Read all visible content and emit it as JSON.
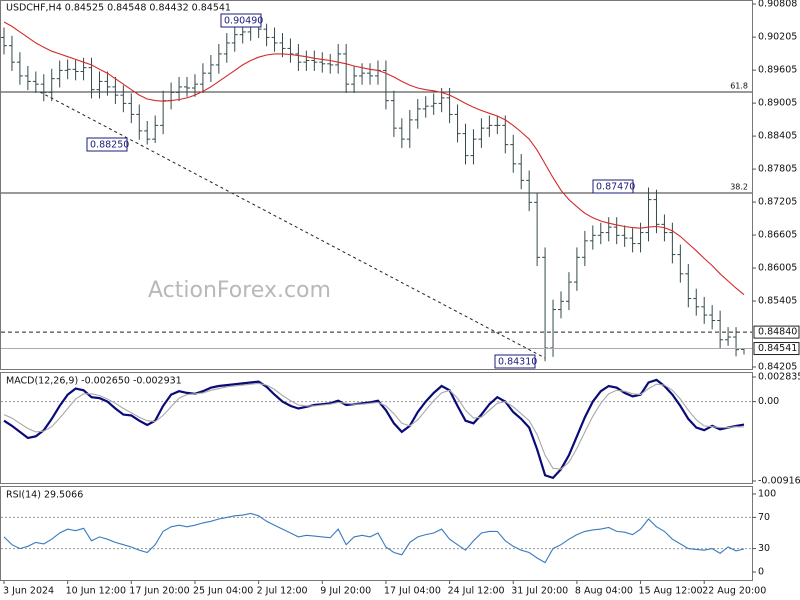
{
  "chart_data": [
    {
      "type": "ohlc",
      "title": "USDCHF,H4  0.84525 0.84548 0.84432 0.84541",
      "watermark": "ActionForex.com",
      "color": "#34494a",
      "open": [
        0.902,
        0.9005,
        0.8975,
        0.895,
        0.894,
        0.8935,
        0.892,
        0.8945,
        0.896,
        0.8962,
        0.8958,
        0.8965,
        0.8925,
        0.894,
        0.893,
        0.8915,
        0.89,
        0.888,
        0.885,
        0.8835,
        0.886,
        0.8905,
        0.892,
        0.893,
        0.8928,
        0.8935,
        0.8955,
        0.897,
        0.899,
        0.901,
        0.9025,
        0.903,
        0.904,
        0.9035,
        0.902,
        0.901,
        0.9,
        0.899,
        0.8975,
        0.8978,
        0.8975,
        0.8972,
        0.897,
        0.899,
        0.8935,
        0.895,
        0.8955,
        0.895,
        0.896,
        0.8905,
        0.8855,
        0.8835,
        0.887,
        0.889,
        0.8895,
        0.89,
        0.891,
        0.888,
        0.8845,
        0.8805,
        0.8835,
        0.8855,
        0.886,
        0.886,
        0.8825,
        0.879,
        0.876,
        0.872,
        0.862,
        0.8455,
        0.8525,
        0.854,
        0.8575,
        0.862,
        0.865,
        0.866,
        0.8665,
        0.8675,
        0.866,
        0.8655,
        0.8645,
        0.8665,
        0.8725,
        0.868,
        0.8665,
        0.8625,
        0.859,
        0.8545,
        0.853,
        0.8515,
        0.8505,
        0.847,
        0.8475,
        0.84525
      ],
      "high": [
        0.9038,
        0.9023,
        0.8993,
        0.8968,
        0.8958,
        0.8953,
        0.8963,
        0.8978,
        0.898,
        0.898,
        0.8983,
        0.8983,
        0.8958,
        0.8958,
        0.8948,
        0.8933,
        0.8918,
        0.8898,
        0.8868,
        0.8878,
        0.8923,
        0.8938,
        0.8948,
        0.8948,
        0.8953,
        0.8973,
        0.8988,
        0.9008,
        0.9028,
        0.9043,
        0.9046,
        0.9049,
        0.9047,
        0.9045,
        0.9038,
        0.9028,
        0.9018,
        0.9008,
        0.8996,
        0.8996,
        0.8993,
        0.899,
        0.9008,
        0.9008,
        0.8968,
        0.8973,
        0.8973,
        0.8978,
        0.8978,
        0.8923,
        0.8873,
        0.8888,
        0.8908,
        0.8913,
        0.8918,
        0.8928,
        0.8928,
        0.8898,
        0.8863,
        0.8853,
        0.8873,
        0.8878,
        0.8878,
        0.8878,
        0.8843,
        0.8808,
        0.8778,
        0.8738,
        0.8638,
        0.8543,
        0.8558,
        0.8593,
        0.8638,
        0.8668,
        0.8678,
        0.8683,
        0.8693,
        0.8693,
        0.8678,
        0.8673,
        0.8683,
        0.8747,
        0.8743,
        0.8698,
        0.8683,
        0.8643,
        0.8608,
        0.8563,
        0.8548,
        0.8533,
        0.8523,
        0.8493,
        0.8493,
        0.84548
      ],
      "low": [
        0.8989,
        0.8959,
        0.8934,
        0.8924,
        0.8919,
        0.8904,
        0.8904,
        0.8929,
        0.8944,
        0.8942,
        0.8942,
        0.8909,
        0.8909,
        0.8914,
        0.8899,
        0.8884,
        0.8864,
        0.8834,
        0.8825,
        0.8828,
        0.8844,
        0.8889,
        0.8904,
        0.8912,
        0.8912,
        0.8919,
        0.8939,
        0.8954,
        0.8974,
        0.8994,
        0.9009,
        0.9014,
        0.9019,
        0.9004,
        0.8994,
        0.8984,
        0.8974,
        0.8959,
        0.8959,
        0.8959,
        0.8956,
        0.8954,
        0.8954,
        0.8919,
        0.8919,
        0.8934,
        0.8934,
        0.8934,
        0.8889,
        0.8839,
        0.8819,
        0.8819,
        0.8854,
        0.8874,
        0.8879,
        0.8884,
        0.8864,
        0.8829,
        0.8789,
        0.8789,
        0.8819,
        0.8839,
        0.8844,
        0.8809,
        0.8774,
        0.8744,
        0.8704,
        0.8604,
        0.8431,
        0.8439,
        0.8509,
        0.8524,
        0.8559,
        0.8604,
        0.8634,
        0.8644,
        0.8649,
        0.8644,
        0.8639,
        0.8629,
        0.8629,
        0.8649,
        0.8664,
        0.8649,
        0.8609,
        0.8574,
        0.8529,
        0.8514,
        0.8499,
        0.8489,
        0.8454,
        0.8459,
        0.844,
        0.84432
      ],
      "close": [
        0.9005,
        0.8975,
        0.895,
        0.894,
        0.8935,
        0.892,
        0.8945,
        0.896,
        0.8962,
        0.8958,
        0.8965,
        0.8925,
        0.894,
        0.893,
        0.8915,
        0.89,
        0.888,
        0.885,
        0.8835,
        0.886,
        0.8905,
        0.892,
        0.893,
        0.8928,
        0.8935,
        0.8955,
        0.897,
        0.899,
        0.901,
        0.9025,
        0.903,
        0.904,
        0.9035,
        0.902,
        0.901,
        0.9,
        0.899,
        0.8975,
        0.8978,
        0.8975,
        0.8972,
        0.897,
        0.899,
        0.8935,
        0.895,
        0.8955,
        0.895,
        0.896,
        0.8905,
        0.8855,
        0.8835,
        0.887,
        0.889,
        0.8895,
        0.89,
        0.891,
        0.888,
        0.8845,
        0.8805,
        0.8835,
        0.8855,
        0.886,
        0.886,
        0.8825,
        0.879,
        0.876,
        0.872,
        0.862,
        0.8455,
        0.8525,
        0.854,
        0.8575,
        0.862,
        0.865,
        0.866,
        0.8665,
        0.8675,
        0.866,
        0.8655,
        0.8645,
        0.8665,
        0.8725,
        0.868,
        0.8665,
        0.8625,
        0.859,
        0.8545,
        0.853,
        0.8515,
        0.8505,
        0.847,
        0.8475,
        0.8452,
        0.84541
      ],
      "series": [
        {
          "color": "#d42a2a",
          "values": [
            0.9048,
            0.904,
            0.903,
            0.902,
            0.901,
            0.9002,
            0.8995,
            0.899,
            0.8985,
            0.898,
            0.8975,
            0.897,
            0.8962,
            0.8955,
            0.8945,
            0.8935,
            0.8925,
            0.8915,
            0.8908,
            0.8905,
            0.8904,
            0.8905,
            0.8907,
            0.891,
            0.8915,
            0.8922,
            0.893,
            0.894,
            0.895,
            0.896,
            0.897,
            0.8978,
            0.8984,
            0.8988,
            0.899,
            0.899,
            0.8989,
            0.8987,
            0.8985,
            0.8982,
            0.898,
            0.8978,
            0.8975,
            0.8972,
            0.8968,
            0.8965,
            0.8962,
            0.896,
            0.8955,
            0.8948,
            0.894,
            0.8933,
            0.8928,
            0.8925,
            0.8923,
            0.892,
            0.8915,
            0.8908,
            0.89,
            0.8893,
            0.8887,
            0.8882,
            0.8877,
            0.887,
            0.886,
            0.8848,
            0.8835,
            0.8815,
            0.879,
            0.8765,
            0.8742,
            0.8725,
            0.8712,
            0.87,
            0.8692,
            0.8686,
            0.8682,
            0.8679,
            0.8676,
            0.8674,
            0.8673,
            0.8675,
            0.8676,
            0.8674,
            0.8668,
            0.8658,
            0.8645,
            0.8632,
            0.8618,
            0.8605,
            0.859,
            0.8577,
            0.8564,
            0.8552
          ]
        }
      ],
      "ylim": [
        0.84205,
        0.90808
      ],
      "yticks": [
        0.90808,
        0.90205,
        0.89605,
        0.89005,
        0.88405,
        0.87805,
        0.87205,
        0.86605,
        0.86005,
        0.85405,
        0.84205
      ],
      "levels": [
        {
          "label": "61.8",
          "value": 0.89207
        },
        {
          "label": "38.2",
          "value": 0.8737
        }
      ],
      "hline": {
        "value": 0.8484,
        "label": "0.84840"
      },
      "annotations": [
        "0.90490",
        "0.88250",
        "0.87470",
        "0.84310"
      ]
    },
    {
      "type": "line",
      "title": "MACD(12,26,9) -0.002650 -0.002931",
      "grid": true,
      "series": [
        {
          "color": "#0a0a78",
          "values": [
            -0.0022,
            -0.0028,
            -0.0035,
            -0.0042,
            -0.004,
            -0.0033,
            -0.002,
            -0.0005,
            0.0008,
            0.0015,
            0.0013,
            0.0005,
            0.0004,
            0.0,
            -0.0008,
            -0.0015,
            -0.0016,
            -0.0022,
            -0.0027,
            -0.0022,
            -0.0005,
            0.0008,
            0.0012,
            0.001,
            0.0009,
            0.0012,
            0.0016,
            0.0018,
            0.0019,
            0.002,
            0.0021,
            0.0022,
            0.0023,
            0.0017,
            0.0008,
            0.0,
            -0.0005,
            -0.0008,
            -0.0006,
            -0.0004,
            -0.0003,
            -0.0002,
            0.0001,
            -0.0004,
            -0.0003,
            -0.0002,
            -0.0001,
            0.0001,
            -0.001,
            -0.0025,
            -0.0035,
            -0.0028,
            -0.0012,
            0.0,
            0.001,
            0.0018,
            0.0013,
            -0.0005,
            -0.0022,
            -0.0025,
            -0.0015,
            -0.0003,
            0.0005,
            0.0,
            -0.0012,
            -0.002,
            -0.003,
            -0.0055,
            -0.0085,
            -0.0088,
            -0.0078,
            -0.0062,
            -0.004,
            -0.0018,
            0.0,
            0.0012,
            0.0018,
            0.0016,
            0.001,
            0.0006,
            0.0008,
            0.0022,
            0.0025,
            0.0018,
            0.0008,
            -0.0005,
            -0.002,
            -0.003,
            -0.0033,
            -0.0028,
            -0.0032,
            -0.003,
            -0.0028,
            -0.00265
          ]
        },
        {
          "color": "#a8a8a8",
          "values": [
            -0.0015,
            -0.0019,
            -0.0025,
            -0.0031,
            -0.0035,
            -0.0034,
            -0.0029,
            -0.0019,
            -0.0008,
            0.0003,
            0.0009,
            0.0009,
            0.0007,
            0.0003,
            -0.0002,
            -0.0008,
            -0.0013,
            -0.0018,
            -0.0022,
            -0.0023,
            -0.0016,
            -0.0006,
            0.0004,
            0.0008,
            0.0009,
            0.001,
            0.0013,
            0.0015,
            0.0017,
            0.0018,
            0.0019,
            0.002,
            0.0021,
            0.0019,
            0.0014,
            0.0007,
            0.0001,
            -0.0004,
            -0.0005,
            -0.0005,
            -0.0004,
            -0.0003,
            -0.0001,
            -0.0002,
            -0.0003,
            -0.0003,
            -0.0002,
            -0.0001,
            -0.0005,
            -0.0014,
            -0.0025,
            -0.0028,
            -0.0021,
            -0.001,
            0.0001,
            0.001,
            0.0013,
            0.0004,
            -0.001,
            -0.0019,
            -0.0018,
            -0.001,
            -0.0002,
            0.0,
            -0.0006,
            -0.0014,
            -0.0022,
            -0.0038,
            -0.0062,
            -0.0077,
            -0.0078,
            -0.007,
            -0.0054,
            -0.0035,
            -0.0017,
            -0.0002,
            0.0009,
            0.0013,
            0.0012,
            0.0009,
            0.0008,
            0.0015,
            0.002,
            0.0019,
            0.0013,
            0.0003,
            -0.001,
            -0.0021,
            -0.0028,
            -0.0029,
            -0.003,
            -0.003,
            -0.0029,
            -0.002931
          ]
        }
      ],
      "ylim": [
        -0.009161,
        0.002835
      ],
      "yticks": [
        0.002835,
        {
          "value": 0,
          "label": "0.00"
        },
        -0.009161
      ]
    },
    {
      "type": "line",
      "title": "RSI(14) 29.5066",
      "grid": true,
      "series": [
        {
          "color": "#3a7bbf",
          "values": [
            45,
            35,
            30,
            33,
            38,
            36,
            42,
            50,
            55,
            53,
            56,
            40,
            45,
            42,
            38,
            35,
            32,
            28,
            25,
            35,
            52,
            58,
            60,
            58,
            60,
            63,
            65,
            68,
            70,
            72,
            73,
            75,
            72,
            65,
            60,
            55,
            50,
            45,
            47,
            46,
            45,
            44,
            55,
            35,
            45,
            47,
            45,
            50,
            32,
            25,
            22,
            38,
            45,
            48,
            50,
            55,
            42,
            35,
            28,
            40,
            50,
            52,
            52,
            40,
            33,
            28,
            25,
            18,
            12,
            30,
            35,
            42,
            48,
            52,
            54,
            55,
            57,
            52,
            51,
            48,
            55,
            68,
            58,
            52,
            42,
            36,
            30,
            29,
            28,
            30,
            24,
            32,
            27,
            29.5066
          ]
        }
      ],
      "ylim": [
        0,
        100
      ],
      "yticks": [
        100,
        70,
        30,
        0
      ],
      "categories": [
        "3 Jun 2024",
        null,
        null,
        null,
        null,
        null,
        null,
        null,
        "10 Jun 12:00",
        null,
        null,
        null,
        null,
        null,
        null,
        null,
        "17 Jun 20:00",
        null,
        null,
        null,
        null,
        null,
        null,
        null,
        "25 Jun 04:00",
        null,
        null,
        null,
        null,
        null,
        null,
        null,
        "2 Jul 12:00",
        null,
        null,
        null,
        null,
        null,
        null,
        null,
        "9 Jul 20:00",
        null,
        null,
        null,
        null,
        null,
        null,
        null,
        "17 Jul 04:00",
        null,
        null,
        null,
        null,
        null,
        null,
        null,
        "24 Jul 12:00",
        null,
        null,
        null,
        null,
        null,
        null,
        null,
        "31 Jul 20:00",
        null,
        null,
        null,
        null,
        null,
        null,
        null,
        "8 Aug 04:00",
        null,
        null,
        null,
        null,
        null,
        null,
        null,
        "15 Aug 12:00",
        null,
        null,
        null,
        null,
        null,
        null,
        null,
        "22 Aug 20:00",
        null,
        null,
        null,
        null,
        null
      ]
    }
  ]
}
